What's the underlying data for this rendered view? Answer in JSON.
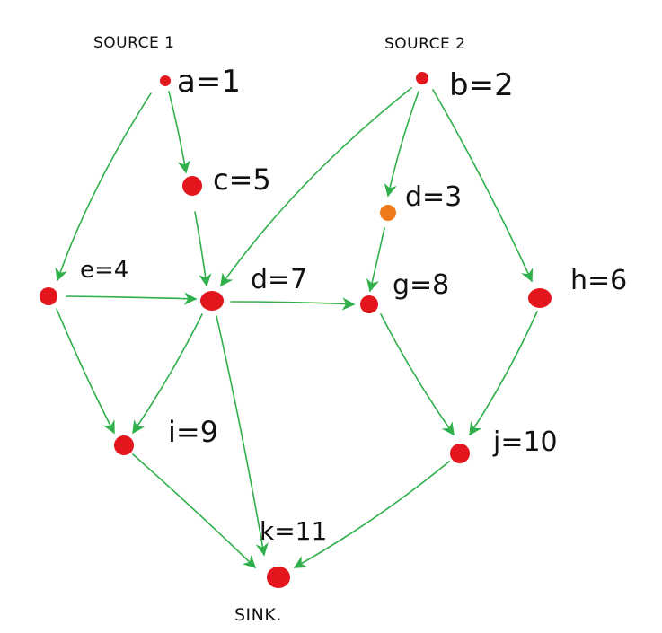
{
  "colors": {
    "node": "#e3161d",
    "node_highlight": "#f07a19",
    "edge": "#2fb04a",
    "text": "#111111"
  },
  "labels": {
    "source1": "SOURCE 1",
    "source2": "SOURCE 2",
    "sink": "SINK."
  },
  "nodes": {
    "a": {
      "label": "a=1"
    },
    "b": {
      "label": "b=2"
    },
    "c": {
      "label": "c=5"
    },
    "d_top": {
      "label": "d=3"
    },
    "e": {
      "label": "e=4"
    },
    "d_mid": {
      "label": "d=7"
    },
    "g": {
      "label": "g=8"
    },
    "h": {
      "label": "h=6"
    },
    "i": {
      "label": "i=9"
    },
    "j": {
      "label": "j=10"
    },
    "k": {
      "label": "k=11"
    }
  }
}
